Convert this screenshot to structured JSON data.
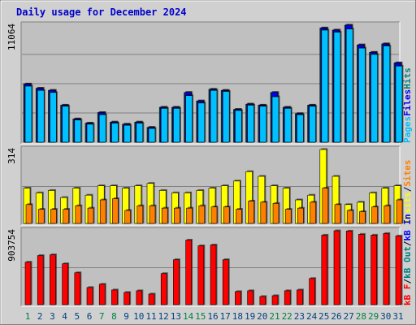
{
  "title": "Daily usage for December 2024",
  "colors": {
    "background": "#d0d0d0",
    "panel": "#c0c0c0",
    "title_text": "#0000cc",
    "weekday_label": "#004080",
    "weekend_label": "#008040",
    "hits": "#008080",
    "files": "#0000ff",
    "pages": "#00c0ff",
    "visits": "#ffff00",
    "sites": "#ff8000",
    "kbin": "#0000ff",
    "kbout": "#008080",
    "kbf": "#ff0000"
  },
  "chart_data": [
    {
      "type": "bar",
      "name": "top",
      "max_label": "11064",
      "ylim": [
        0,
        11064
      ],
      "legend": [
        {
          "text": "Pages",
          "color": "#00c0ff"
        },
        {
          "text": "Files",
          "color": "#0000ff"
        },
        {
          "text": "Hits",
          "color": "#008080"
        }
      ],
      "series": [
        {
          "name": "Hits",
          "color": "#008080",
          "values": [
            5500,
            5100,
            4900,
            3500,
            2200,
            1800,
            2800,
            1900,
            1700,
            1900,
            1400,
            3300,
            3300,
            4700,
            3900,
            5000,
            4900,
            3100,
            3600,
            3500,
            4700,
            3300,
            2700,
            3500,
            10800,
            10600,
            11064,
            9200,
            8500,
            9300,
            7500
          ]
        },
        {
          "name": "Files",
          "color": "#0000ff",
          "values": [
            5500,
            5100,
            4900,
            3500,
            2200,
            1800,
            2800,
            1900,
            1700,
            1900,
            1400,
            3300,
            3300,
            4700,
            3900,
            5000,
            4900,
            3100,
            3600,
            3500,
            4700,
            3300,
            2700,
            3500,
            10800,
            10600,
            11064,
            9200,
            8500,
            9300,
            7500
          ]
        },
        {
          "name": "Pages",
          "color": "#00c0ff",
          "values": [
            5300,
            4900,
            4700,
            3400,
            2100,
            1700,
            2600,
            1800,
            1600,
            1800,
            1300,
            3200,
            3200,
            4400,
            3700,
            4900,
            4800,
            3000,
            3500,
            3400,
            4300,
            3200,
            2600,
            3400,
            10600,
            10400,
            10700,
            8900,
            8300,
            9100,
            7200
          ]
        }
      ]
    },
    {
      "type": "bar",
      "name": "middle",
      "max_label": "314",
      "ylim": [
        0,
        314
      ],
      "legend": [
        {
          "text": "Visits",
          "color": "#ffff00"
        },
        {
          "text": "/",
          "color": "#000000"
        },
        {
          "text": "Sites",
          "color": "#ff8000"
        }
      ],
      "series": [
        {
          "name": "Visits",
          "color": "#ffff00",
          "values": [
            150,
            130,
            140,
            110,
            150,
            120,
            160,
            160,
            150,
            160,
            170,
            140,
            130,
            130,
            140,
            150,
            160,
            180,
            220,
            200,
            160,
            150,
            100,
            120,
            314,
            200,
            80,
            90,
            130,
            150,
            160
          ]
        },
        {
          "name": "Sites",
          "color": "#ff8000",
          "values": [
            80,
            60,
            60,
            60,
            75,
            65,
            100,
            105,
            55,
            75,
            75,
            65,
            65,
            65,
            75,
            70,
            70,
            60,
            95,
            90,
            85,
            60,
            65,
            90,
            150,
            80,
            55,
            50,
            70,
            75,
            100
          ]
        }
      ]
    },
    {
      "type": "bar",
      "name": "bottom",
      "max_label": "903754",
      "ylim": [
        0,
        903754
      ],
      "legend": [
        {
          "text": "kB F",
          "color": "#ff0000"
        },
        {
          "text": "/",
          "color": "#000000"
        },
        {
          "text": "kB Out",
          "color": "#008080"
        },
        {
          "text": "/",
          "color": "#000000"
        },
        {
          "text": "kB In",
          "color": "#0000ff"
        }
      ],
      "series": [
        {
          "name": "kB F",
          "color": "#ff0000",
          "values": [
            520000,
            600000,
            610000,
            500000,
            390000,
            210000,
            250000,
            180000,
            150000,
            170000,
            130000,
            380000,
            550000,
            790000,
            720000,
            730000,
            550000,
            160000,
            170000,
            100000,
            110000,
            170000,
            180000,
            320000,
            850000,
            903754,
            900000,
            860000,
            850000,
            870000,
            840000
          ]
        }
      ]
    }
  ],
  "x_axis": {
    "days": [
      "1",
      "2",
      "3",
      "4",
      "5",
      "6",
      "7",
      "8",
      "9",
      "10",
      "11",
      "12",
      "13",
      "14",
      "15",
      "16",
      "17",
      "18",
      "19",
      "20",
      "21",
      "22",
      "23",
      "24",
      "25",
      "26",
      "27",
      "28",
      "29",
      "30",
      "31"
    ],
    "weekend_indices": [
      0,
      6,
      7,
      13,
      14,
      20,
      21,
      27,
      28
    ]
  }
}
